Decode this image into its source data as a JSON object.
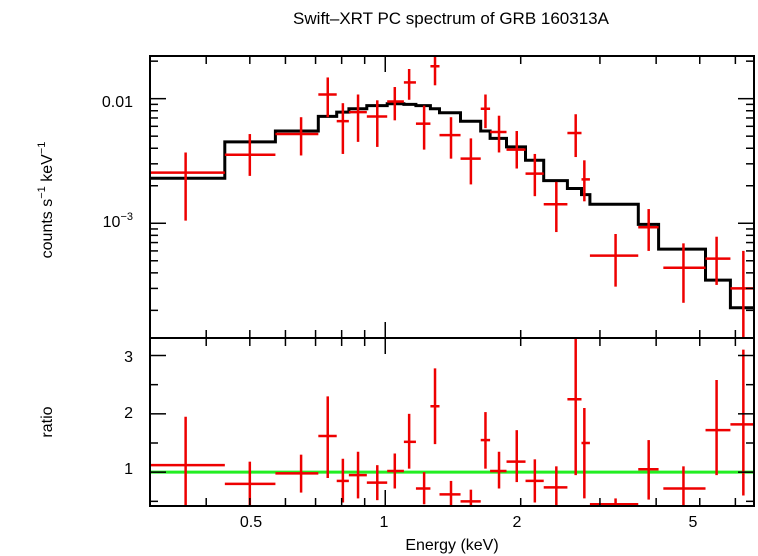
{
  "chart_data": [
    {
      "type": "scatter",
      "title": "Swift–XRT PC spectrum of GRB 160313A",
      "ylabel_main": "counts s",
      "ylabel_sup1": "−1",
      "ylabel_mid": " keV",
      "ylabel_sup2": "−1",
      "xscale": "log",
      "yscale": "log",
      "xlim": [
        0.3,
        6.6
      ],
      "ylim": [
        0.00012,
        0.022
      ],
      "ytick_labels": [
        "0.01",
        "10",
        "−3"
      ],
      "colors": {
        "data": "#ee0000",
        "model": "#000000"
      },
      "series": [
        {
          "points": [
            {
              "x": 0.36,
              "xerr": [
                0.3,
                0.44
              ],
              "y": 0.00255,
              "yerr": [
                0.00105,
                0.0037
              ]
            },
            {
              "x": 0.5,
              "xerr": [
                0.44,
                0.57
              ],
              "y": 0.00355,
              "yerr": [
                0.0024,
                0.0052
              ]
            },
            {
              "x": 0.65,
              "xerr": [
                0.57,
                0.71
              ],
              "y": 0.0052,
              "yerr": [
                0.0035,
                0.0071
              ]
            },
            {
              "x": 0.745,
              "xerr": [
                0.71,
                0.78
              ],
              "y": 0.0108,
              "yerr": [
                0.0071,
                0.0148
              ]
            },
            {
              "x": 0.805,
              "xerr": [
                0.78,
                0.83
              ],
              "y": 0.0066,
              "yerr": [
                0.0036,
                0.0092
              ]
            },
            {
              "x": 0.87,
              "xerr": [
                0.83,
                0.91
              ],
              "y": 0.0078,
              "yerr": [
                0.0045,
                0.0108
              ]
            },
            {
              "x": 0.96,
              "xerr": [
                0.91,
                1.01
              ],
              "y": 0.0072,
              "yerr": [
                0.0041,
                0.0097
              ]
            },
            {
              "x": 1.05,
              "xerr": [
                1.01,
                1.1
              ],
              "y": 0.0095,
              "yerr": [
                0.0067,
                0.0124
              ]
            },
            {
              "x": 1.13,
              "xerr": [
                1.1,
                1.17
              ],
              "y": 0.0135,
              "yerr": [
                0.0098,
                0.0173
              ]
            },
            {
              "x": 1.22,
              "xerr": [
                1.17,
                1.26
              ],
              "y": 0.0063,
              "yerr": [
                0.0039,
                0.0088
              ]
            },
            {
              "x": 1.29,
              "xerr": [
                1.26,
                1.32
              ],
              "y": 0.0182,
              "yerr": [
                0.0128,
                0.024
              ]
            },
            {
              "x": 1.4,
              "xerr": [
                1.32,
                1.47
              ],
              "y": 0.0051,
              "yerr": [
                0.0033,
                0.0071
              ]
            },
            {
              "x": 1.55,
              "xerr": [
                1.47,
                1.63
              ],
              "y": 0.0033,
              "yerr": [
                0.00205,
                0.0048
              ]
            },
            {
              "x": 1.67,
              "xerr": [
                1.63,
                1.71
              ],
              "y": 0.0083,
              "yerr": [
                0.0058,
                0.0108
              ]
            },
            {
              "x": 1.79,
              "xerr": [
                1.71,
                1.86
              ],
              "y": 0.0054,
              "yerr": [
                0.0037,
                0.0073
              ]
            },
            {
              "x": 1.96,
              "xerr": [
                1.86,
                2.05
              ],
              "y": 0.0039,
              "yerr": [
                0.00275,
                0.0055
              ]
            },
            {
              "x": 2.15,
              "xerr": [
                2.05,
                2.25
              ],
              "y": 0.0025,
              "yerr": [
                0.00165,
                0.0036
              ]
            },
            {
              "x": 2.4,
              "xerr": [
                2.25,
                2.54
              ],
              "y": 0.00142,
              "yerr": [
                0.00085,
                0.00215
              ]
            },
            {
              "x": 2.65,
              "xerr": [
                2.54,
                2.73
              ],
              "y": 0.0053,
              "yerr": [
                0.0034,
                0.0075
              ]
            },
            {
              "x": 2.77,
              "xerr": [
                2.73,
                2.85
              ],
              "y": 0.00225,
              "yerr": [
                0.0015,
                0.0032
              ]
            },
            {
              "x": 3.25,
              "xerr": [
                2.85,
                3.65
              ],
              "y": 0.00055,
              "yerr": [
                0.00031,
                0.00082
              ]
            },
            {
              "x": 3.85,
              "xerr": [
                3.65,
                4.05
              ],
              "y": 0.00093,
              "yerr": [
                0.0006,
                0.0013
              ]
            },
            {
              "x": 4.6,
              "xerr": [
                4.15,
                5.15
              ],
              "y": 0.00044,
              "yerr": [
                0.00023,
                0.00069
              ]
            },
            {
              "x": 5.45,
              "xerr": [
                5.15,
                5.85
              ],
              "y": 0.00052,
              "yerr": [
                0.00032,
                0.00078
              ]
            },
            {
              "x": 6.25,
              "xerr": [
                5.85,
                6.6
              ],
              "y": 0.0003,
              "yerr": [
                0.00012,
                0.0006
              ]
            }
          ]
        },
        {
          "steps": [
            [
              0.3,
              0.0023
            ],
            [
              0.44,
              0.0045
            ],
            [
              0.57,
              0.0055
            ],
            [
              0.71,
              0.0072
            ],
            [
              0.78,
              0.0078
            ],
            [
              0.83,
              0.0083
            ],
            [
              0.91,
              0.0088
            ],
            [
              1.01,
              0.0091
            ],
            [
              1.1,
              0.009
            ],
            [
              1.17,
              0.0088
            ],
            [
              1.26,
              0.0083
            ],
            [
              1.32,
              0.0077
            ],
            [
              1.47,
              0.0066
            ],
            [
              1.63,
              0.0055
            ],
            [
              1.71,
              0.0048
            ],
            [
              1.86,
              0.0041
            ],
            [
              2.05,
              0.0032
            ],
            [
              2.25,
              0.0022
            ],
            [
              2.54,
              0.0019
            ],
            [
              2.73,
              0.0017
            ],
            [
              2.85,
              0.00142
            ],
            [
              3.65,
              0.00098
            ],
            [
              4.05,
              0.00062
            ],
            [
              5.15,
              0.00035
            ],
            [
              5.85,
              0.00021
            ],
            [
              6.6,
              0.00021
            ]
          ]
        }
      ]
    },
    {
      "type": "scatter",
      "xlabel": "Energy (keV)",
      "ylabel": "ratio",
      "xscale": "log",
      "xlim": [
        0.3,
        6.6
      ],
      "ylim": [
        0.42,
        3.3
      ],
      "xtick_labels": [
        "0.5",
        "1",
        "2",
        "5"
      ],
      "ytick_labels": [
        "1",
        "2",
        "3"
      ],
      "reference_line": 1.0,
      "colors": {
        "data": "#ee0000",
        "reference": "#22ee22"
      },
      "series": [
        {
          "points": [
            {
              "x": 0.36,
              "xerr": [
                0.3,
                0.44
              ],
              "y": 1.12,
              "yerr": [
                0.43,
                1.95
              ]
            },
            {
              "x": 0.5,
              "xerr": [
                0.44,
                0.57
              ],
              "y": 0.8,
              "yerr": [
                0.42,
                1.18
              ]
            },
            {
              "x": 0.65,
              "xerr": [
                0.57,
                0.71
              ],
              "y": 0.98,
              "yerr": [
                0.65,
                1.3
              ]
            },
            {
              "x": 0.745,
              "xerr": [
                0.71,
                0.78
              ],
              "y": 1.62,
              "yerr": [
                0.9,
                2.3
              ]
            },
            {
              "x": 0.805,
              "xerr": [
                0.78,
                0.83
              ],
              "y": 0.85,
              "yerr": [
                0.48,
                1.23
              ]
            },
            {
              "x": 0.87,
              "xerr": [
                0.83,
                0.91
              ],
              "y": 0.95,
              "yerr": [
                0.55,
                1.35
              ]
            },
            {
              "x": 0.96,
              "xerr": [
                0.91,
                1.01
              ],
              "y": 0.82,
              "yerr": [
                0.52,
                1.12
              ]
            },
            {
              "x": 1.05,
              "xerr": [
                1.01,
                1.1
              ],
              "y": 1.02,
              "yerr": [
                0.72,
                1.32
              ]
            },
            {
              "x": 1.13,
              "xerr": [
                1.1,
                1.17
              ],
              "y": 1.52,
              "yerr": [
                1.06,
                2.0
              ]
            },
            {
              "x": 1.22,
              "xerr": [
                1.17,
                1.26
              ],
              "y": 0.72,
              "yerr": [
                0.45,
                1.0
              ]
            },
            {
              "x": 1.29,
              "xerr": [
                1.26,
                1.32
              ],
              "y": 2.13,
              "yerr": [
                1.48,
                2.78
              ]
            },
            {
              "x": 1.4,
              "xerr": [
                1.32,
                1.47
              ],
              "y": 0.62,
              "yerr": [
                0.42,
                0.85
              ]
            },
            {
              "x": 1.55,
              "xerr": [
                1.47,
                1.63
              ],
              "y": 0.5,
              "yerr": [
                0.42,
                0.7
              ]
            },
            {
              "x": 1.67,
              "xerr": [
                1.63,
                1.71
              ],
              "y": 1.55,
              "yerr": [
                1.06,
                2.03
              ]
            },
            {
              "x": 1.79,
              "xerr": [
                1.71,
                1.86
              ],
              "y": 1.02,
              "yerr": [
                0.72,
                1.35
              ]
            },
            {
              "x": 1.96,
              "xerr": [
                1.86,
                2.05
              ],
              "y": 1.18,
              "yerr": [
                0.83,
                1.72
              ]
            },
            {
              "x": 2.15,
              "xerr": [
                2.05,
                2.25
              ],
              "y": 0.85,
              "yerr": [
                0.48,
                1.22
              ]
            },
            {
              "x": 2.4,
              "xerr": [
                2.25,
                2.54
              ],
              "y": 0.74,
              "yerr": [
                0.42,
                1.1
              ]
            },
            {
              "x": 2.65,
              "xerr": [
                2.54,
                2.73
              ],
              "y": 2.25,
              "yerr": [
                0.95,
                3.3
              ]
            },
            {
              "x": 2.77,
              "xerr": [
                2.73,
                2.85
              ],
              "y": 1.5,
              "yerr": [
                0.55,
                2.1
              ]
            },
            {
              "x": 3.25,
              "xerr": [
                2.85,
                3.65
              ],
              "y": 0.45,
              "yerr": [
                0.42,
                0.55
              ]
            },
            {
              "x": 3.85,
              "xerr": [
                3.65,
                4.05
              ],
              "y": 1.05,
              "yerr": [
                0.53,
                1.55
              ]
            },
            {
              "x": 4.6,
              "xerr": [
                4.15,
                5.15
              ],
              "y": 0.72,
              "yerr": [
                0.42,
                1.1
              ]
            },
            {
              "x": 5.45,
              "xerr": [
                5.15,
                5.85
              ],
              "y": 1.72,
              "yerr": [
                0.95,
                2.58
              ]
            },
            {
              "x": 6.25,
              "xerr": [
                5.85,
                6.6
              ],
              "y": 1.82,
              "yerr": [
                0.6,
                3.1
              ]
            }
          ]
        }
      ]
    }
  ]
}
